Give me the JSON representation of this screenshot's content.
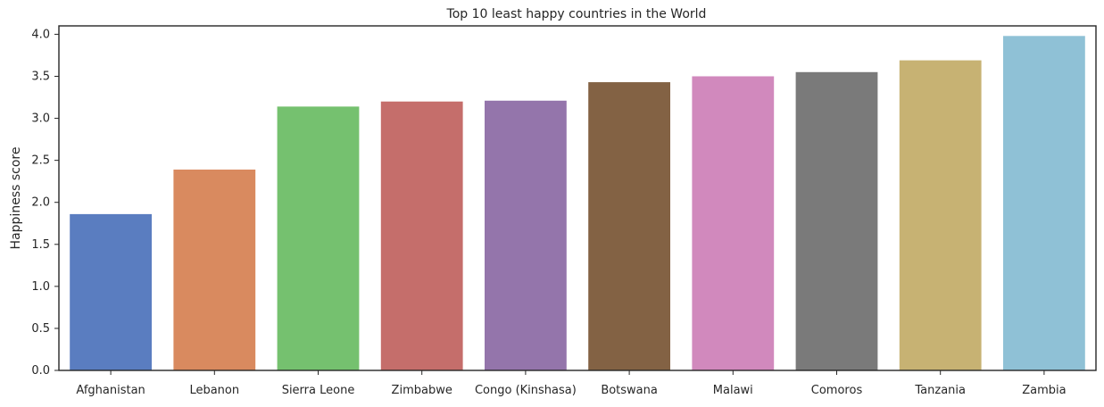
{
  "chart_data": {
    "type": "bar",
    "title": "Top 10 least happy countries in the World",
    "xlabel": "",
    "ylabel": "Happiness score",
    "ylim": [
      0,
      4.1
    ],
    "yticks": [
      "0.0",
      "0.5",
      "1.0",
      "1.5",
      "2.0",
      "2.5",
      "3.0",
      "3.5",
      "4.0"
    ],
    "grid": false,
    "categories": [
      "Afghanistan",
      "Lebanon",
      "Sierra Leone",
      "Zimbabwe",
      "Congo (Kinshasa)",
      "Botswana",
      "Malawi",
      "Comoros",
      "Tanzania",
      "Zambia"
    ],
    "values": [
      1.86,
      2.39,
      3.14,
      3.2,
      3.21,
      3.43,
      3.5,
      3.55,
      3.69,
      3.98
    ],
    "colors": [
      "#5a7dc0",
      "#d98a5f",
      "#75c16f",
      "#c56e6b",
      "#9475ab",
      "#836244",
      "#d189bd",
      "#7a7a7a",
      "#c7b273",
      "#8fc1d6"
    ]
  }
}
